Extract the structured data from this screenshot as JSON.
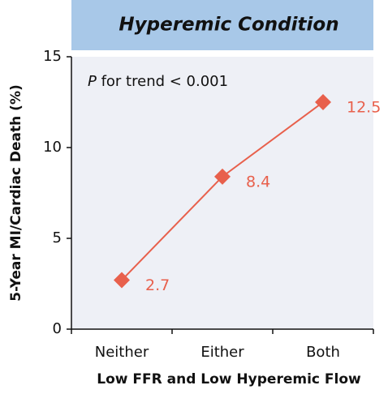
{
  "chart_data": {
    "type": "line",
    "title": "Hyperemic Condition",
    "annotation": {
      "italic": "P",
      "text": " for trend < 0.001"
    },
    "x_label": "Low FFR and Low Hyperemic Flow",
    "y_label": "5-Year MI/Cardiac Death (%)",
    "categories": [
      "Neither",
      "Either",
      "Both"
    ],
    "series": [
      {
        "name": "Hyperemic Condition",
        "color": "#e8604c",
        "values": [
          2.7,
          8.4,
          12.5
        ]
      }
    ],
    "ylim": [
      0,
      15
    ],
    "yticks": [
      0,
      5,
      10,
      15
    ]
  }
}
